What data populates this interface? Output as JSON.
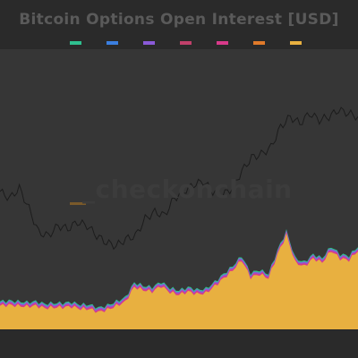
{
  "chart_data": {
    "type": "area",
    "title": "Bitcoin Options Open Interest [USD]",
    "watermark": "_checkonchain",
    "legend": [
      {
        "color": "#2fbf8f"
      },
      {
        "color": "#3b7fe0"
      },
      {
        "color": "#8a5ad8"
      },
      {
        "color": "#c0406a"
      },
      {
        "color": "#d83a8a"
      },
      {
        "color": "#e07a2a"
      },
      {
        "color": "#e8b040"
      }
    ],
    "colors": {
      "background": "#2a2a2a",
      "plot": "#363636",
      "price_line": "#1c1c1c",
      "area_main": "#e8b040",
      "area_top": "#8a5ad8",
      "area_top2": "#d83a8a",
      "area_top3": "#2fbf8f"
    },
    "price_series": [
      60,
      58,
      61,
      55,
      48,
      47,
      50,
      49,
      51,
      50,
      47,
      45,
      44,
      46,
      47,
      52,
      54,
      53,
      58,
      60,
      62,
      63,
      60,
      59,
      61,
      66,
      70,
      71,
      73,
      79,
      82,
      80,
      83,
      81,
      82,
      84,
      83,
      82
    ],
    "oi_series": [
      3,
      3.1,
      3,
      2.9,
      3,
      2.7,
      2.8,
      2.8,
      2.9,
      2.6,
      2.6,
      2.2,
      2.5,
      3,
      3.5,
      5.4,
      5,
      4.8,
      5.5,
      4.7,
      4.4,
      4.8,
      4.5,
      4.6,
      5.5,
      6.5,
      7.5,
      8.8,
      6.6,
      7,
      6.5,
      9.5,
      12,
      8.5,
      8,
      9,
      8.5,
      10,
      9,
      8.8,
      10
    ],
    "oi_max": 14,
    "price_min": 40,
    "price_max": 90
  }
}
